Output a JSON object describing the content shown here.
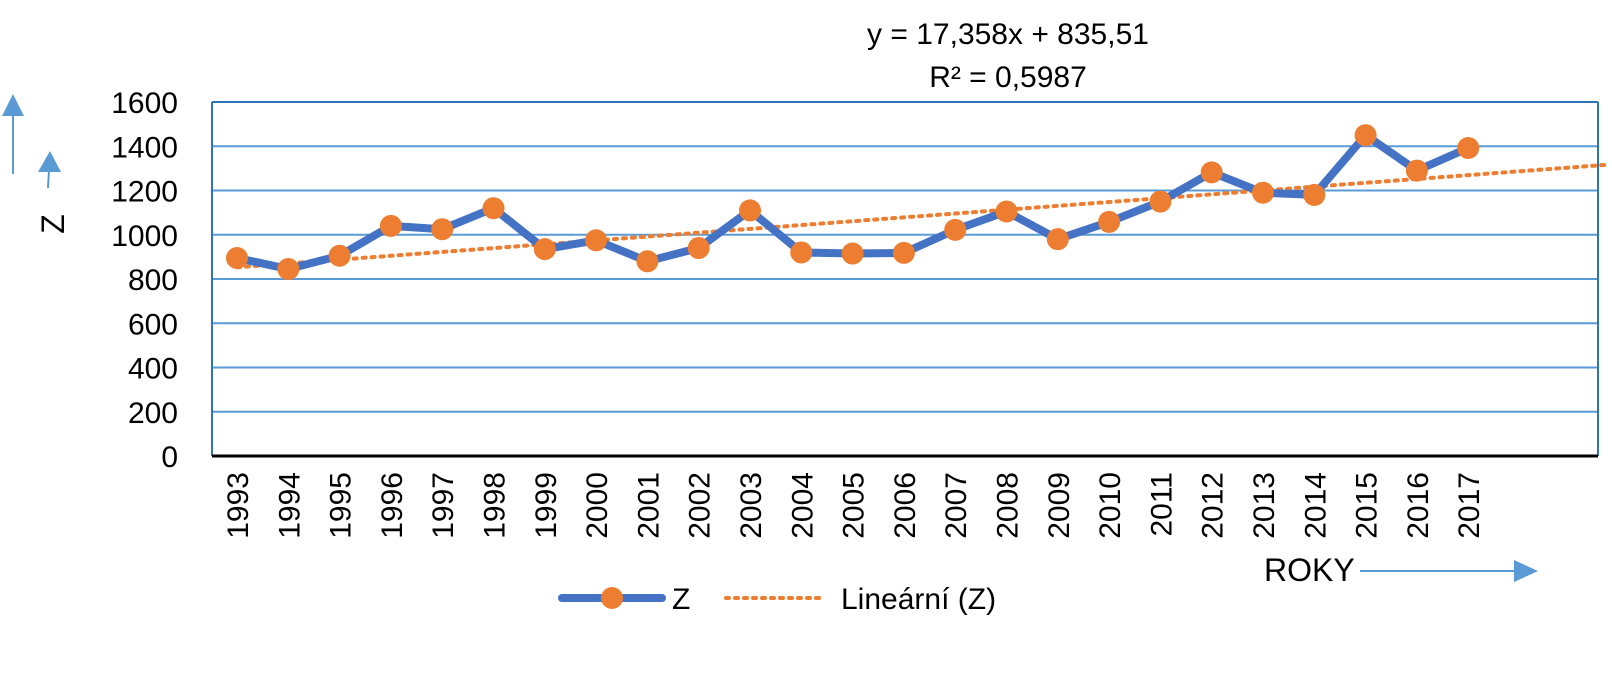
{
  "chart_data": {
    "type": "line",
    "title": "",
    "xlabel": "ROKY",
    "ylabel": "Z",
    "ylim": [
      0,
      1600
    ],
    "yticks": [
      0,
      200,
      400,
      600,
      800,
      1000,
      1200,
      1400,
      1600
    ],
    "grid": true,
    "legend_position": "bottom",
    "categories": [
      "1993",
      "1994",
      "1995",
      "1996",
      "1997",
      "1998",
      "1999",
      "2000",
      "2001",
      "2002",
      "2003",
      "2004",
      "2005",
      "2006",
      "2007",
      "2008",
      "2009",
      "2010",
      "2011",
      "2012",
      "2013",
      "2014",
      "2015",
      "2016",
      "2017"
    ],
    "series": [
      {
        "name": "Z",
        "values": [
          895,
          845,
          905,
          1040,
          1025,
          1120,
          935,
          975,
          880,
          940,
          1110,
          920,
          915,
          918,
          1022,
          1105,
          980,
          1058,
          1150,
          1282,
          1190,
          1180,
          1450,
          1290,
          1392
        ],
        "line_color": "#4472C4",
        "marker_color": "#ED7D31"
      }
    ],
    "trendline": {
      "name": "Lineární (Z)",
      "type": "linear",
      "slope": 17.358,
      "intercept": 835.51,
      "color": "#ED7D31",
      "equation_text": "y = 17,358x + 835,51",
      "r2_text": "R² = 0,5987"
    },
    "colors": {
      "grid": "#5B9BD5",
      "frame": "#2E75B6",
      "arrow": "#5B9BD5"
    }
  }
}
